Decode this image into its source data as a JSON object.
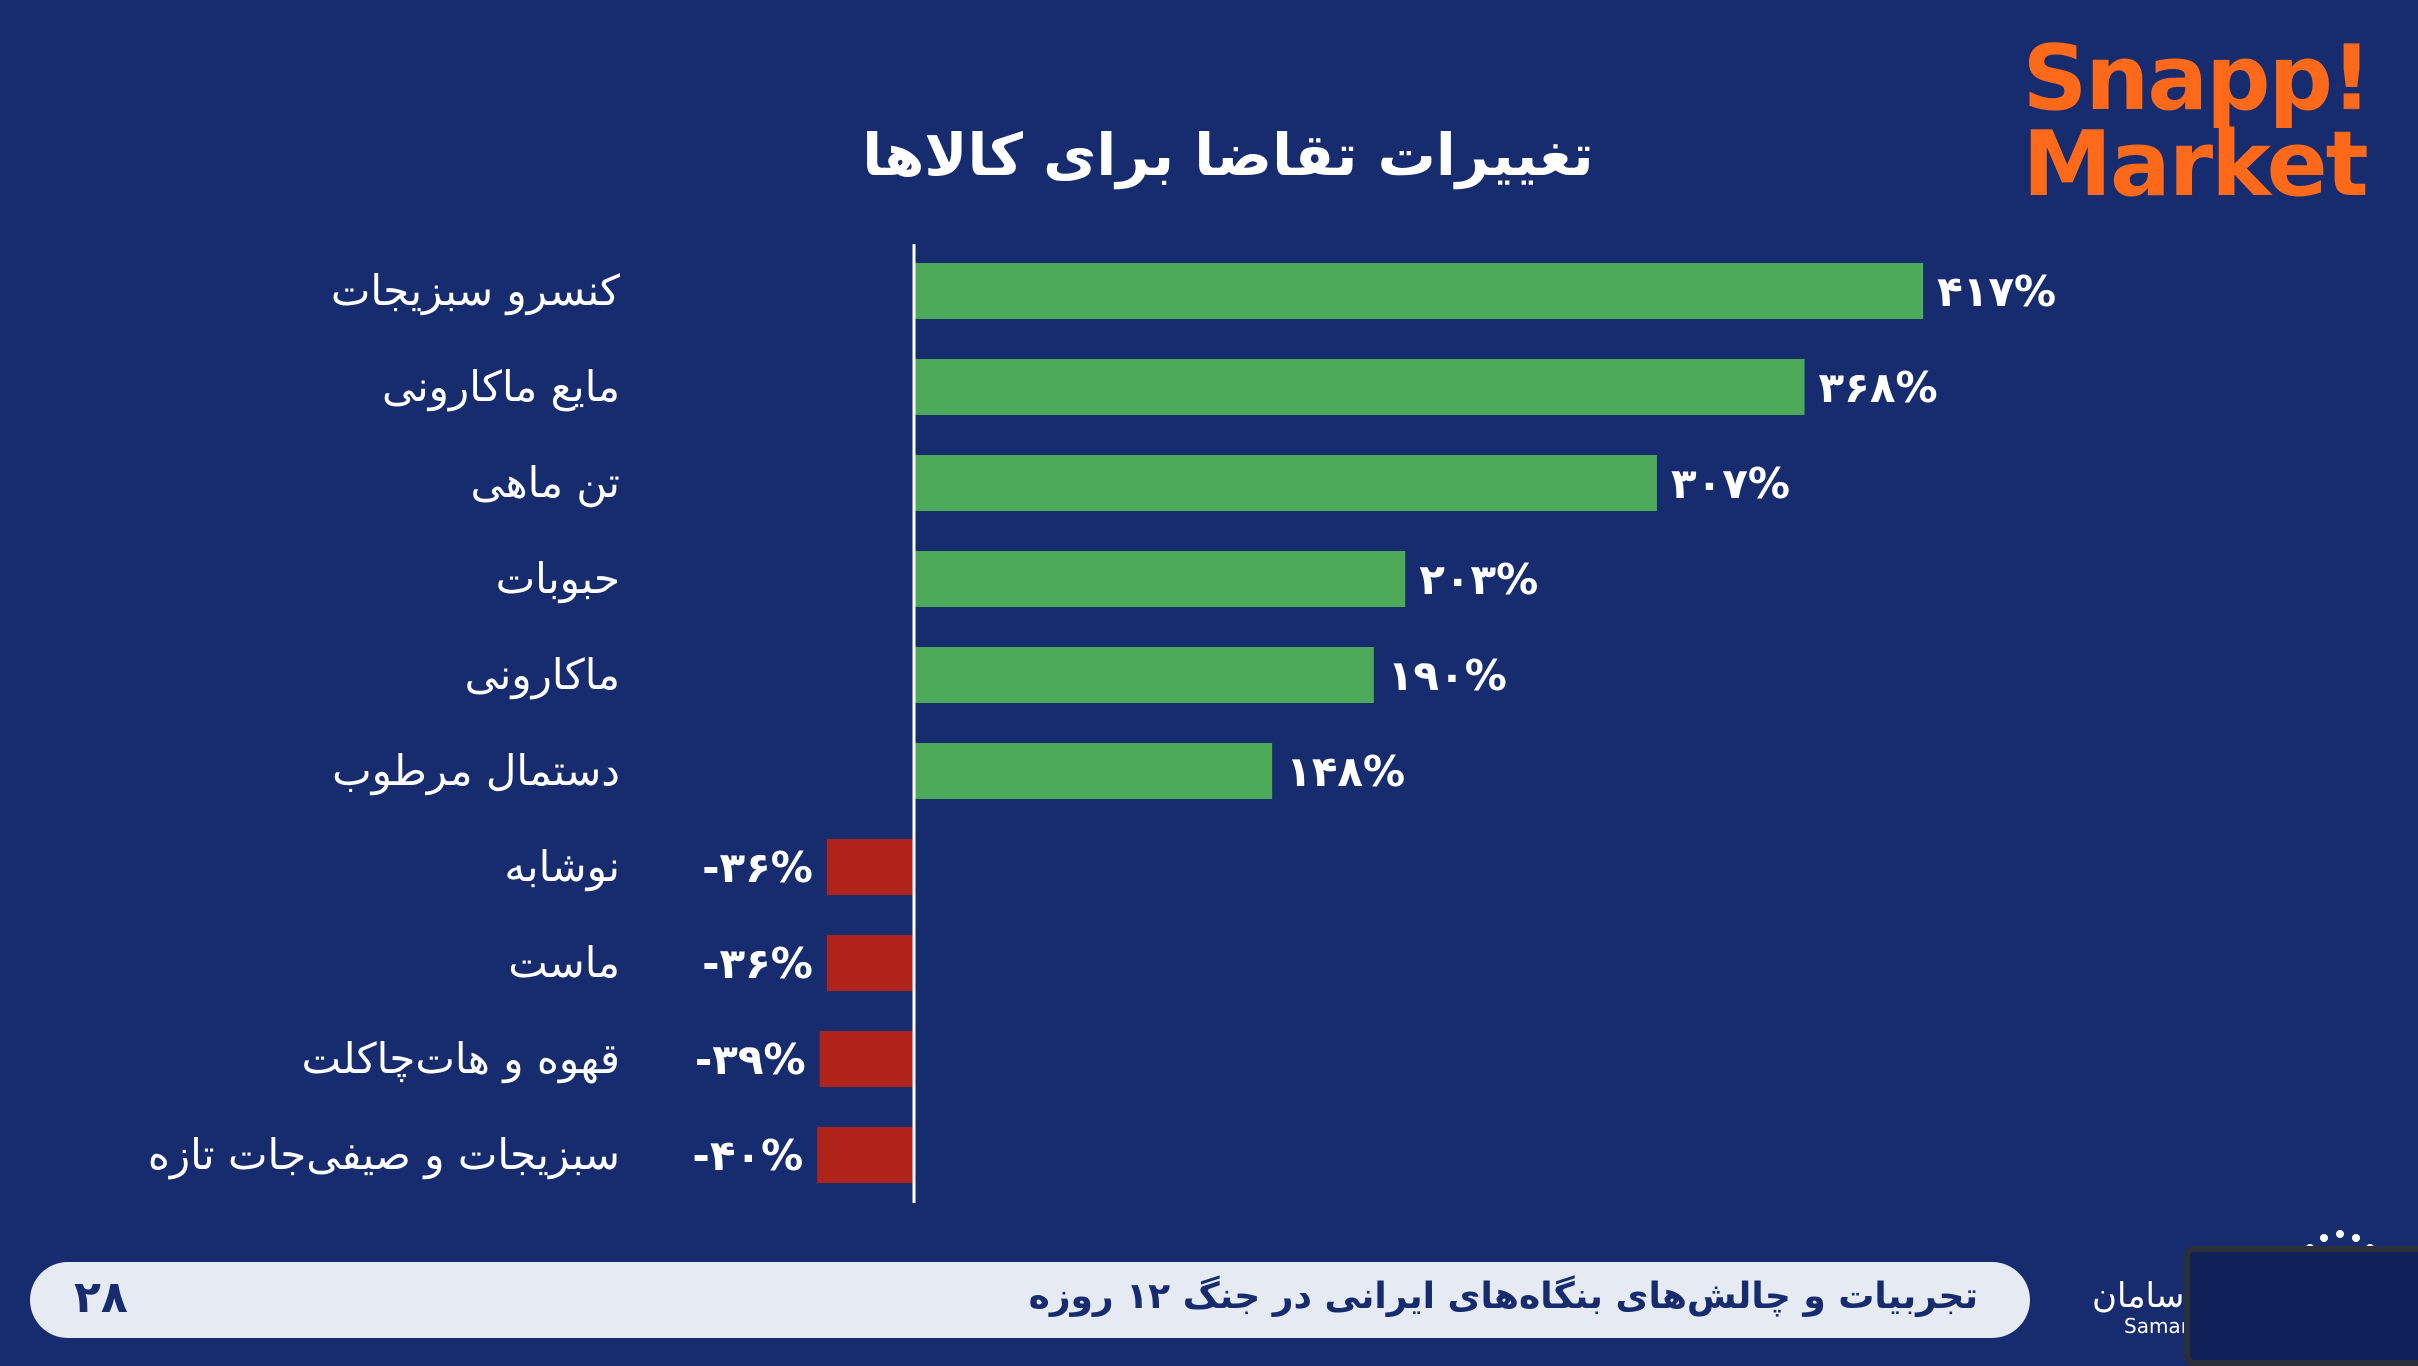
{
  "chart_data": {
    "type": "bar",
    "orientation": "horizontal",
    "title": "تغییرات تقاضا برای کالاها",
    "categories": [
      "کنسرو سبزیجات",
      "مایع ماکارونی",
      "تن ماهی",
      "حبوبات",
      "ماکارونی",
      "دستمال مرطوب",
      "نوشابه",
      "ماست",
      "قهوه و هات‌چاکلت",
      "سبزیجات و صیفی‌جات تازه"
    ],
    "values": [
      417,
      368,
      307,
      203,
      190,
      148,
      -36,
      -36,
      -39,
      -40
    ],
    "value_labels": [
      "۴۱۷%",
      "۳۶۸%",
      "۳۰۷%",
      "۲۰۳%",
      "۱۹۰%",
      "۱۴۸%",
      "-۳۶%",
      "-۳۶%",
      "-۳۹%",
      "-۴۰%"
    ],
    "unit": "%",
    "colors": {
      "positive": "#4caa58",
      "negative": "#b0231a"
    },
    "grid": false,
    "legend": "none"
  },
  "logo": {
    "line1": "Snapp!",
    "line2": "Market",
    "color": "#ff6a1a"
  },
  "footer": {
    "title": "تجربیات و چالش‌های بنگاه‌های ایرانی در جنگ ۱۲ روزه",
    "page_number": "۲۸"
  },
  "brand": {
    "name": "سامان",
    "latin": "Saman"
  },
  "colors": {
    "background": "#172c6e",
    "footer_bar": "#e6eaf2",
    "text": "#ffffff"
  }
}
